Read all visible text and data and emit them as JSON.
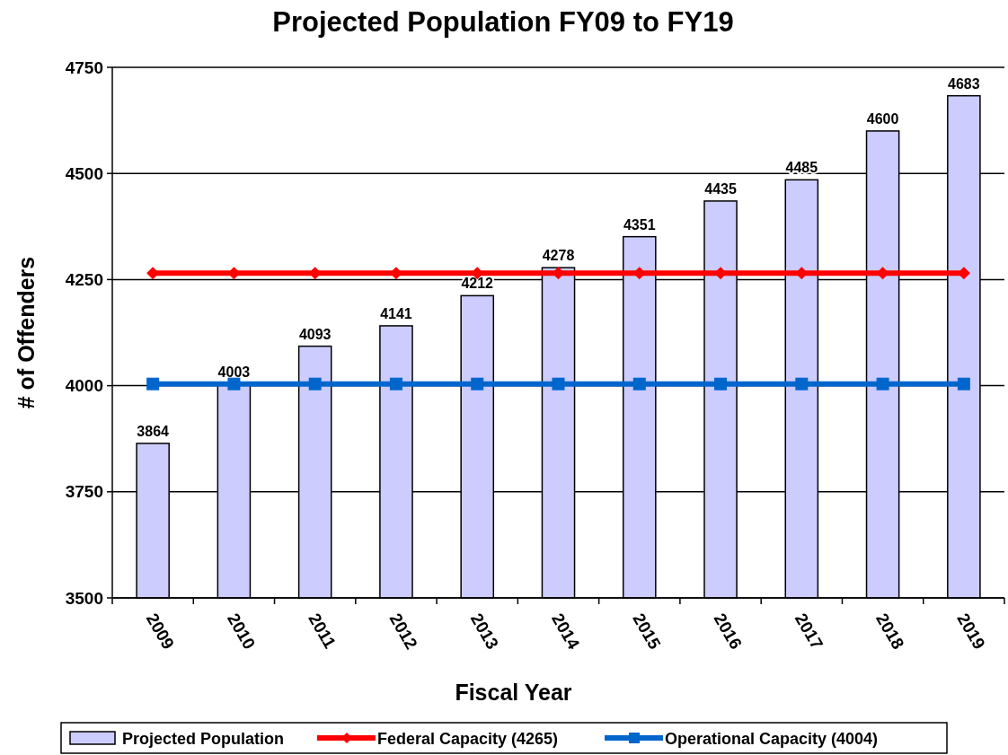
{
  "chart_data": {
    "type": "bar",
    "title": "Projected Population FY09 to FY19",
    "xlabel": "Fiscal Year",
    "ylabel": "# of Offenders",
    "categories": [
      "2009",
      "2010",
      "2011",
      "2012",
      "2013",
      "2014",
      "2015",
      "2016",
      "2017",
      "2018",
      "2019"
    ],
    "series": [
      {
        "name": "Projected Population",
        "color": "#ccccff",
        "values": [
          3864,
          4003,
          4093,
          4141,
          4212,
          4278,
          4351,
          4435,
          4485,
          4600,
          4683
        ],
        "value_labels": [
          "3864",
          "4003",
          "4093",
          "4141",
          "4212",
          "4278",
          "4351",
          "4435",
          "4485",
          "4600",
          "4683"
        ]
      },
      {
        "name": "Federal Capacity (4265)",
        "type": "line",
        "color": "#ff0000",
        "marker": "diamond",
        "values": [
          4265,
          4265,
          4265,
          4265,
          4265,
          4265,
          4265,
          4265,
          4265,
          4265,
          4265
        ]
      },
      {
        "name": "Operational Capacity (4004)",
        "type": "line",
        "color": "#0066cc",
        "marker": "square",
        "values": [
          4004,
          4004,
          4004,
          4004,
          4004,
          4004,
          4004,
          4004,
          4004,
          4004,
          4004
        ]
      }
    ],
    "ylim": [
      3500,
      4750
    ],
    "yticks": [
      3500,
      3750,
      4000,
      4250,
      4500,
      4750
    ],
    "grid": "y",
    "legend": "bottom"
  }
}
